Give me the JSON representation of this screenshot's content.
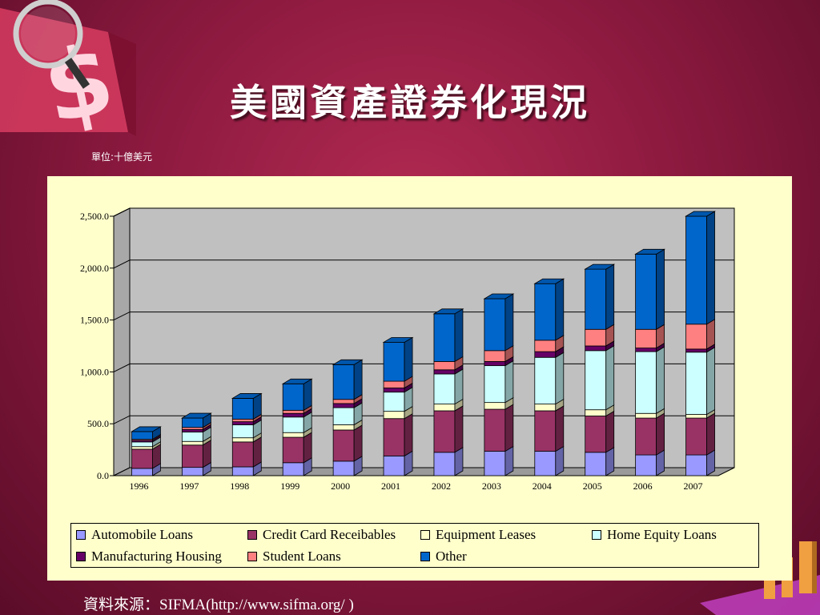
{
  "slide": {
    "title": "美國資產證券化現況",
    "unit": "單位:十億美元",
    "source": "資料來源：SIFMA(http://www.sifma.org/ )"
  },
  "icons": {
    "top_left": "dollar-magnifier-icon",
    "bottom_right": "bar-graph-decoration-icon"
  },
  "chart_data": {
    "type": "bar",
    "stacked": true,
    "three_d": true,
    "categories": [
      "1996",
      "1997",
      "1998",
      "1999",
      "2000",
      "2001",
      "2002",
      "2003",
      "2004",
      "2005",
      "2006",
      "2007"
    ],
    "ylim": [
      0,
      2500
    ],
    "yticks": [
      0,
      500,
      1000,
      1500,
      2000,
      2500
    ],
    "ytick_labels": [
      "0.0",
      "500.0",
      "1,000.0",
      "1,500.0",
      "2,000.0",
      "2,500.0"
    ],
    "grid": true,
    "legend_position": "bottom",
    "series": [
      {
        "name": "Automobile Loans",
        "color": "#9999ff",
        "values": [
          70,
          80,
          85,
          125,
          140,
          190,
          225,
          235,
          235,
          225,
          200,
          200
        ]
      },
      {
        "name": "Credit Card Receibables",
        "color": "#993366",
        "values": [
          185,
          215,
          240,
          245,
          300,
          360,
          400,
          405,
          390,
          350,
          355,
          355
        ]
      },
      {
        "name": "Equipment Leases",
        "color": "#ffffcc",
        "values": [
          25,
          35,
          40,
          45,
          50,
          70,
          65,
          65,
          65,
          60,
          45,
          35
        ]
      },
      {
        "name": "Home Equity Loans",
        "color": "#ccffff",
        "values": [
          45,
          90,
          125,
          150,
          165,
          185,
          290,
          355,
          450,
          570,
          595,
          600
        ]
      },
      {
        "name": "Manufacturing Housing",
        "color": "#660066",
        "values": [
          15,
          25,
          30,
          35,
          40,
          40,
          40,
          40,
          55,
          45,
          35,
          30
        ]
      },
      {
        "name": "Student Loans",
        "color": "#ff8080",
        "values": [
          10,
          20,
          25,
          30,
          40,
          65,
          80,
          105,
          110,
          160,
          180,
          240
        ]
      },
      {
        "name": "Other",
        "color": "#0066cc",
        "values": [
          75,
          90,
          200,
          255,
          335,
          375,
          460,
          500,
          545,
          580,
          725,
          1040
        ]
      }
    ]
  }
}
